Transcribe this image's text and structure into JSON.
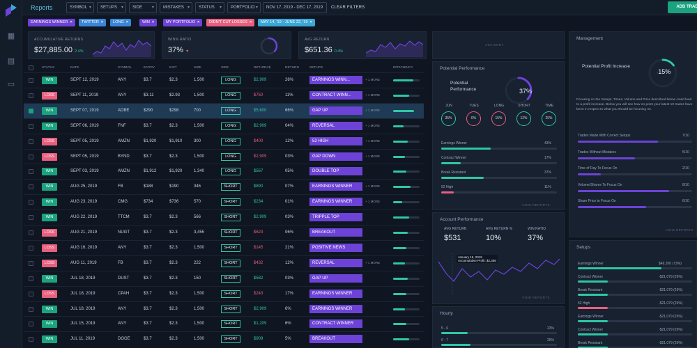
{
  "app": {
    "title": "Reports",
    "add_trade": "ADD TRADE",
    "clear_filters": "CLEAR FILTERS"
  },
  "filters": {
    "symbol": "SYMBOL",
    "setups": "SETUPS",
    "side": "SIDE",
    "mistakes": "MISTAKES",
    "status": "STATUS",
    "portfolio": "PORTFOLIO",
    "date_range": "NOV 17, 2019 - DEC 17, 2019"
  },
  "tags": [
    {
      "label": "EARNINGS WINNER",
      "color": "#6c43d6"
    },
    {
      "label": "TWITTER",
      "color": "#3a86d8"
    },
    {
      "label": "LONG",
      "color": "#3a86d8"
    },
    {
      "label": "WIN",
      "color": "#6c43d6"
    },
    {
      "label": "MY PORTFOLIO",
      "color": "#6c43d6"
    },
    {
      "label": "DIDN'T CUT LOSSES",
      "color": "#e85f7f"
    },
    {
      "label": "MAY 14, '19 - JUNE 22, '19",
      "color": "#3aa7d8"
    }
  ],
  "kpis": {
    "acc": {
      "label": "ACCUMULATIVE RETURNS",
      "value": "$27,885.00",
      "delta": "2.4%"
    },
    "win": {
      "label": "WIN% RATIO",
      "value": "37%"
    },
    "avg": {
      "label": "AVG RETURN",
      "value": "$651.36",
      "delta": "0.4%"
    }
  },
  "table": {
    "headers": {
      "status": "STATUS",
      "date": "DATE",
      "symbol": "SYMBOL",
      "entry": "ENTRY",
      "exit": "EXIT",
      "size": "SIZE",
      "side": "SIDE",
      "return_usd": "RETURN $",
      "return_pct": "RETURN",
      "setups": "SETUPS",
      "efficiency": "EFFICIENCY"
    },
    "rows": [
      {
        "status": "WIN",
        "date": "SEPT 12, 2019",
        "symbol": "ANY",
        "entry": "$3.7",
        "exit": "$2.3",
        "size": "1,500",
        "side": "LONG",
        "ret": "$2,909",
        "pct": "26%",
        "setup": "EARNINGS WINN...",
        "more": "+ 1 MORE",
        "eff": 0.75,
        "checked": false
      },
      {
        "status": "LOSS",
        "date": "SEPT 11, 2019",
        "symbol": "ANY",
        "entry": "$3.11",
        "exit": "$2.93",
        "size": "1,500",
        "side": "LONG",
        "ret": "$750",
        "pct": "11%",
        "setup": "CONTRACT WINN...",
        "more": "+ 1 MORE",
        "eff": 0.6,
        "checked": false
      },
      {
        "status": "WIN",
        "date": "SEPT 07, 2019",
        "symbol": "ADBE",
        "entry": "$290",
        "exit": "$298",
        "size": "700",
        "side": "LONG",
        "ret": "$5,600",
        "pct": "66%",
        "setup": "GAP UP",
        "more": "+ 1 MORE",
        "eff": 0.8,
        "checked": true
      },
      {
        "status": "WIN",
        "date": "SEPT 06, 2019",
        "symbol": "FNF",
        "entry": "$3.7",
        "exit": "$2.3",
        "size": "1,500",
        "side": "LONG",
        "ret": "$2,909",
        "pct": "04%",
        "setup": "REVERSAL",
        "more": "+ 1 MORE",
        "eff": 0.4,
        "checked": false
      },
      {
        "status": "LOSS",
        "date": "SEPT 05, 2019",
        "symbol": "AMZN",
        "entry": "$1,920",
        "exit": "$1,910",
        "size": "300",
        "side": "LONG",
        "ret": "$400",
        "pct": "12%",
        "setup": "52 HIGH",
        "more": "+ 1 MORE",
        "eff": 0.55,
        "checked": false
      },
      {
        "status": "LOSS",
        "date": "SEPT 05, 2019",
        "symbol": "BYND",
        "entry": "$3.7",
        "exit": "$2.3",
        "size": "1,500",
        "side": "LONG",
        "ret": "$2,909",
        "pct": "03%",
        "setup": "GAP DOWN",
        "more": "+ 1 MORE",
        "eff": 0.45,
        "checked": false
      },
      {
        "status": "WIN",
        "date": "SEPT 03, 2019",
        "symbol": "AMZN",
        "entry": "$1,912",
        "exit": "$1,920",
        "size": "1,340",
        "side": "LONG",
        "ret": "$567",
        "pct": "05%",
        "setup": "DOUBLE TOP",
        "more": "",
        "eff": 0.5,
        "checked": false
      },
      {
        "status": "WIN",
        "date": "AUG 25, 2019",
        "symbol": "FB",
        "entry": "$188",
        "exit": "$190",
        "size": "346",
        "side": "SHORT",
        "ret": "$890",
        "pct": "07%",
        "setup": "EARNINGS WINNER",
        "more": "+ 1 MORE",
        "eff": 0.65,
        "checked": false
      },
      {
        "status": "WIN",
        "date": "AUG 23, 2019",
        "symbol": "CMG",
        "entry": "$734",
        "exit": "$736",
        "size": "570",
        "side": "SHORT",
        "ret": "$234",
        "pct": "01%",
        "setup": "EARNINGS WINNER",
        "more": "+ 1 MORE",
        "eff": 0.35,
        "checked": false
      },
      {
        "status": "WIN",
        "date": "AUG 22, 2019",
        "symbol": "TTCM",
        "entry": "$3.7",
        "exit": "$2.3",
        "size": "566",
        "side": "SHORT",
        "ret": "$2,909",
        "pct": "03%",
        "setup": "TRIPPLE TOP",
        "more": "",
        "eff": 0.6,
        "checked": false
      },
      {
        "status": "LOSS",
        "date": "AUG 21, 2019",
        "symbol": "NUGT",
        "entry": "$3.7",
        "exit": "$2.3",
        "size": "3,455",
        "side": "SHORT",
        "ret": "$623",
        "pct": "06%",
        "setup": "BREAKOUT",
        "more": "",
        "eff": 0.55,
        "checked": false
      },
      {
        "status": "LOSS",
        "date": "AUG 16, 2019",
        "symbol": "ANY",
        "entry": "$3.7",
        "exit": "$2.3",
        "size": "1,500",
        "side": "SHORT",
        "ret": "$145",
        "pct": "21%",
        "setup": "POSITIVE NEWS",
        "more": "",
        "eff": 0.5,
        "checked": false
      },
      {
        "status": "LOSS",
        "date": "AUG 11, 2019",
        "symbol": "FB",
        "entry": "$3.7",
        "exit": "$2.3",
        "size": "222",
        "side": "SHORT",
        "ret": "$432",
        "pct": "12%",
        "setup": "REVERSAL",
        "more": "+ 1 MORE",
        "eff": 0.45,
        "checked": false
      },
      {
        "status": "WIN",
        "date": "JUL 18, 2019",
        "symbol": "DUST",
        "entry": "$3.7",
        "exit": "$2.3",
        "size": "150",
        "side": "SHORT",
        "ret": "$582",
        "pct": "03%",
        "setup": "GAP UP",
        "more": "",
        "eff": 0.55,
        "checked": false
      },
      {
        "status": "LOSS",
        "date": "JUL 18, 2019",
        "symbol": "CPAH",
        "entry": "$3.7",
        "exit": "$2.3",
        "size": "1,500",
        "side": "SHORT",
        "ret": "$243",
        "pct": "17%",
        "setup": "EARNINGS WINNER",
        "more": "",
        "eff": 0.5,
        "checked": false
      },
      {
        "status": "WIN",
        "date": "JUL 18, 2019",
        "symbol": "ANY",
        "entry": "$3.7",
        "exit": "$2.3",
        "size": "1,500",
        "side": "SHORT",
        "ret": "$2,909",
        "pct": "6%",
        "setup": "EARNINGS WINNER",
        "more": "",
        "eff": 0.45,
        "checked": false
      },
      {
        "status": "WIN",
        "date": "JUL 15, 2019",
        "symbol": "ANY",
        "entry": "$3.7",
        "exit": "$2.3",
        "size": "1,500",
        "side": "SHORT",
        "ret": "$1,209",
        "pct": "6%",
        "setup": "CONTRACT WINNER",
        "more": "",
        "eff": 0.5,
        "checked": false
      },
      {
        "status": "WIN",
        "date": "JUL 11, 2019",
        "symbol": "DOGE",
        "entry": "$3.7",
        "exit": "$2.3",
        "size": "1,500",
        "side": "SHORT",
        "ret": "$909",
        "pct": "5%",
        "setup": "BREAKOUT",
        "more": "",
        "eff": 0.6,
        "checked": false
      }
    ]
  },
  "advisory": {
    "label": "ADVISORY"
  },
  "potential": {
    "title": "Potential Performance",
    "label": "Potential Performance",
    "value": "37%",
    "ring_fraction": 0.37,
    "circles": [
      {
        "label": "JUN",
        "value": "35%",
        "color": "#2fc7a6"
      },
      {
        "label": "TUES",
        "value": "0%",
        "color": "#e85f7f"
      },
      {
        "label": "LONG",
        "value": "15%",
        "color": "#e85f7f"
      },
      {
        "label": "SHORT",
        "value": "12%",
        "color": "#2fc7a6"
      },
      {
        "label": "TIME",
        "value": "25%",
        "color": "#2fc7a6"
      }
    ],
    "bars": [
      {
        "label": "Earnings Winner",
        "value": "43%",
        "fill": 0.43,
        "color": "#2fc7a6"
      },
      {
        "label": "Contract Winner",
        "value": "17%",
        "fill": 0.17,
        "color": "#2fc7a6"
      },
      {
        "label": "Break Resistant",
        "value": "37%",
        "fill": 0.37,
        "color": "#2fc7a6"
      },
      {
        "label": "52 High",
        "value": "11%",
        "fill": 0.11,
        "color": "#e85f7f"
      }
    ],
    "view_reports": "VIEW REPORTS"
  },
  "account": {
    "title": "Account Performance",
    "stats": [
      {
        "label": "AVG RETURN",
        "value": "$531"
      },
      {
        "label": "AVG RETURN %",
        "value": "10%"
      },
      {
        "label": "WIN RATIO",
        "value": "37%"
      }
    ],
    "tooltip_date": "January 15, 2019",
    "tooltip_value": "Accumulative Profit: $2,356",
    "view_reports": "VIEW REPORTS"
  },
  "hourly": {
    "title": "Hourly",
    "rows": [
      {
        "label": "5 - 6",
        "value": "23%",
        "fill": 0.23
      },
      {
        "label": "6 - 7",
        "value": "25%",
        "fill": 0.25
      }
    ]
  },
  "management": {
    "title": "Management",
    "profit_label": "Potential Profit Increase",
    "profit_value": "15%",
    "profit_fraction": 0.15,
    "description": "Focusing on the Setups, Times, Volume and Price described below could lead to a profit increase. Below you will see how on point your latest 10 trades have been in respect to what you should be focusing on.",
    "items": [
      {
        "label": "Trades Made With Correct Setups",
        "value": "7/10",
        "fill": 0.7
      },
      {
        "label": "Trades Without Mistakes",
        "value": "5/10",
        "fill": 0.5
      },
      {
        "label": "Time of Day To Focus On",
        "value": "2/10",
        "fill": 0.2
      },
      {
        "label": "Volume/Shares To Focus On",
        "value": "8/10",
        "fill": 0.8
      },
      {
        "label": "Share Price to Focus On",
        "value": "6/10",
        "fill": 0.6
      }
    ],
    "view_reports": "VIEW REPORTS"
  },
  "setups": {
    "title": "Setups",
    "items": [
      {
        "label": "Earnings Winner",
        "value": "$49,200 (73%)",
        "fill": 0.73,
        "color": "#2fc7a6"
      },
      {
        "label": "Contract Winner",
        "value": "-$21,079 (26%)",
        "fill": 0.26,
        "color": "#2fc7a6"
      },
      {
        "label": "Break Resistant",
        "value": "-$21,079 (26%)",
        "fill": 0.26,
        "color": "#2fc7a6"
      },
      {
        "label": "52 High",
        "value": "-$21,079 (26%)",
        "fill": 0.26,
        "color": "#e85f7f"
      },
      {
        "label": "Earnings Winner",
        "value": "-$21,079 (26%)",
        "fill": 0.26,
        "color": "#2fc7a6"
      },
      {
        "label": "Contract Winner",
        "value": "-$21,079 (26%)",
        "fill": 0.26,
        "color": "#2fc7a6"
      },
      {
        "label": "Break Resistant",
        "value": "-$21,079 (26%)",
        "fill": 0.26,
        "color": "#2fc7a6"
      }
    ]
  }
}
